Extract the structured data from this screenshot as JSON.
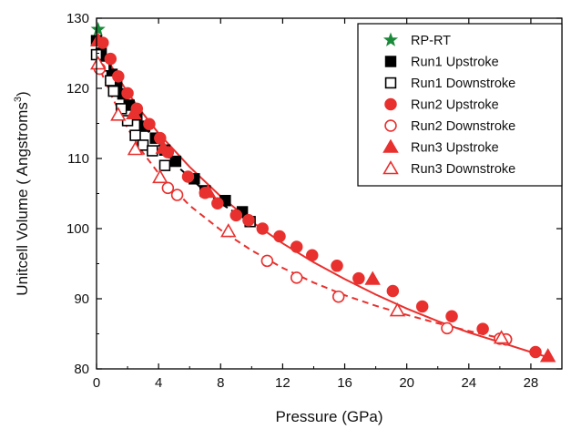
{
  "chart_data": {
    "type": "scatter",
    "xlabel": "Pressure (GPa)",
    "ylabel_main": "Unitcell Volume ( Angstroms",
    "ylabel_sup": "3",
    "ylabel_end": ")",
    "xlim": [
      0,
      30
    ],
    "ylim": [
      80,
      130
    ],
    "xticks": [
      0,
      4,
      8,
      12,
      16,
      20,
      24,
      28
    ],
    "yticks": [
      80,
      90,
      100,
      110,
      120,
      130
    ],
    "legend_position": "top-right",
    "colors": {
      "black": "#000000",
      "red": "#e8302e",
      "green": "#1a8a3a"
    },
    "series": [
      {
        "name": "RP-RT",
        "marker": "star",
        "color": "green",
        "filled": true,
        "x": [
          0.1
        ],
        "y": [
          128.4
        ]
      },
      {
        "name": "Run1 Upstroke",
        "marker": "square",
        "color": "black",
        "filled": true,
        "x": [
          0.0,
          0.3,
          0.6,
          1.0,
          1.3,
          1.7,
          2.1,
          2.6,
          3.1,
          3.8,
          4.4,
          5.1,
          6.3,
          7.0,
          8.3,
          9.4
        ],
        "y": [
          126.8,
          125.0,
          123.5,
          122.0,
          120.8,
          119.2,
          117.6,
          116.2,
          114.6,
          112.9,
          111.2,
          109.6,
          107.1,
          105.4,
          104.0,
          102.4
        ]
      },
      {
        "name": "Run1 Downstroke",
        "marker": "square",
        "color": "black",
        "filled": false,
        "x": [
          0.0,
          0.5,
          0.9,
          1.1,
          1.6,
          2.0,
          2.5,
          3.0,
          3.6,
          4.4,
          9.9
        ],
        "y": [
          124.8,
          123.2,
          121.1,
          119.6,
          117.1,
          115.4,
          113.3,
          111.9,
          111.1,
          109.0,
          101.0
        ]
      },
      {
        "name": "Run2 Upstroke",
        "marker": "circle",
        "color": "red",
        "filled": true,
        "x": [
          0.4,
          0.9,
          1.4,
          2.0,
          2.6,
          3.4,
          4.1,
          4.6,
          5.9,
          7.0,
          7.8,
          9.0,
          9.8,
          10.7,
          11.8,
          12.9,
          13.9,
          15.5,
          16.9,
          19.1,
          21.0,
          22.9,
          24.9,
          26.4,
          28.3
        ],
        "y": [
          126.5,
          124.2,
          121.7,
          119.3,
          117.1,
          114.9,
          112.9,
          110.9,
          107.4,
          105.1,
          103.6,
          101.9,
          101.2,
          100.0,
          98.9,
          97.4,
          96.2,
          94.7,
          92.9,
          91.1,
          88.9,
          87.5,
          85.7,
          84.2,
          82.4
        ]
      },
      {
        "name": "Run2 Downstroke",
        "marker": "circle",
        "color": "red",
        "filled": false,
        "x": [
          0.2,
          4.6,
          5.2,
          11.0,
          12.9,
          15.6,
          22.6,
          26.0,
          26.4
        ],
        "y": [
          122.8,
          105.8,
          104.8,
          95.4,
          93.0,
          90.3,
          85.8,
          84.3,
          84.2
        ]
      },
      {
        "name": "Run3 Upstroke",
        "marker": "triangle",
        "color": "red",
        "filled": true,
        "x": [
          0.1,
          2.4,
          4.3,
          7.2,
          17.8,
          29.1
        ],
        "y": [
          126.8,
          116.4,
          111.5,
          105.2,
          92.8,
          81.8
        ]
      },
      {
        "name": "Run3 Downstroke",
        "marker": "triangle",
        "color": "red",
        "filled": false,
        "x": [
          0.1,
          1.4,
          2.5,
          4.1,
          8.5,
          19.4,
          26.1
        ],
        "y": [
          123.5,
          116.2,
          111.3,
          107.3,
          99.6,
          88.3,
          84.4
        ]
      }
    ],
    "fit_lines": [
      {
        "color": "red",
        "dash": "solid",
        "x": [
          0,
          1,
          2,
          3,
          4,
          6,
          8,
          10,
          12,
          14,
          16,
          18,
          20,
          22,
          24,
          26,
          28,
          29.2
        ],
        "y": [
          127.0,
          123.0,
          119.4,
          116.4,
          113.6,
          108.8,
          104.6,
          101.0,
          97.9,
          95.2,
          92.8,
          90.6,
          88.6,
          86.8,
          85.2,
          83.8,
          82.4,
          81.6
        ]
      },
      {
        "color": "black",
        "dash": "dashed",
        "x": [
          0,
          1,
          2,
          3,
          4,
          5,
          6,
          7,
          8,
          9,
          10
        ],
        "y": [
          126.6,
          122.6,
          118.4,
          114.9,
          111.9,
          109.3,
          107.3,
          105.3,
          103.6,
          102.2,
          100.8
        ]
      },
      {
        "color": "red",
        "dash": "dashed",
        "x": [
          0,
          1,
          2,
          3,
          4,
          6,
          8,
          10,
          12,
          14,
          16,
          18,
          20,
          22,
          24,
          26,
          26.5
        ],
        "y": [
          123.8,
          118.8,
          114.3,
          110.8,
          107.9,
          103.3,
          99.8,
          96.9,
          94.4,
          92.3,
          90.5,
          89.0,
          87.7,
          86.5,
          85.4,
          84.4,
          84.2
        ]
      }
    ]
  }
}
